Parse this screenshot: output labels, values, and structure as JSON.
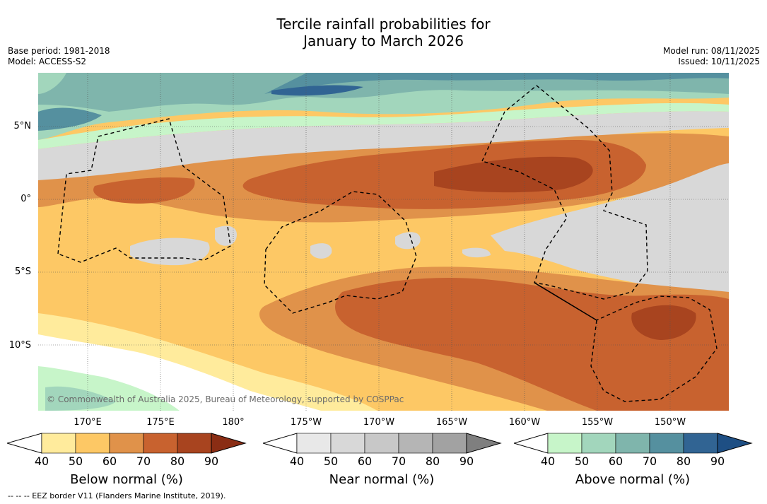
{
  "title_line1": "Tercile rainfall probabilities for",
  "title_line2": "January to March 2026",
  "base_period": "Base period: 1981-2018",
  "model": "Model: ACCESS-S2",
  "model_run": "Model run: 08/11/2025",
  "issued": "Issued: 10/11/2025",
  "copyright": "© Commonwealth of Australia 2025, Bureau of Meteorology, supported by COSPPac",
  "lon_labels": [
    "170°E",
    "175°E",
    "180°",
    "175°W",
    "170°W",
    "165°W",
    "160°W",
    "155°W",
    "150°W"
  ],
  "lat_labels": [
    "5°N",
    "0°",
    "5°S",
    "10°S"
  ],
  "colorbars": [
    {
      "title": "Below normal (%)",
      "ticks": [
        "40",
        "50",
        "60",
        "70",
        "80",
        "90"
      ],
      "colors": [
        "#ffeb9c",
        "#fdc865",
        "#e0924a",
        "#c8622f",
        "#a8441f",
        "#8a2d14"
      ]
    },
    {
      "title": "Near normal (%)",
      "ticks": [
        "40",
        "50",
        "60",
        "70",
        "80",
        "90"
      ],
      "colors": [
        "#e8e8e8",
        "#d8d8d8",
        "#c8c8c8",
        "#b5b5b5",
        "#a2a2a2",
        "#7f7f7f"
      ]
    },
    {
      "title": "Above normal (%)",
      "ticks": [
        "40",
        "50",
        "60",
        "70",
        "80",
        "90"
      ],
      "colors": [
        "#c7f5c9",
        "#a2d6bc",
        "#7fb5ac",
        "#55909f",
        "#316493",
        "#1e4f84"
      ]
    }
  ],
  "footnote": "--  --  -- EEZ border V11 (Flanders Marine Institute, 2019).",
  "colors": {
    "below_light": "#ffeb9c",
    "below_50": "#fdc865",
    "below_60": "#e0924a",
    "below_70": "#c8622f",
    "below_80": "#a8441f",
    "near_50": "#d8d8d8",
    "near_40": "#e8e8e8",
    "above_50": "#a2d6bc",
    "above_60": "#7fb5ac",
    "above_70": "#55909f",
    "above_80": "#316493"
  }
}
